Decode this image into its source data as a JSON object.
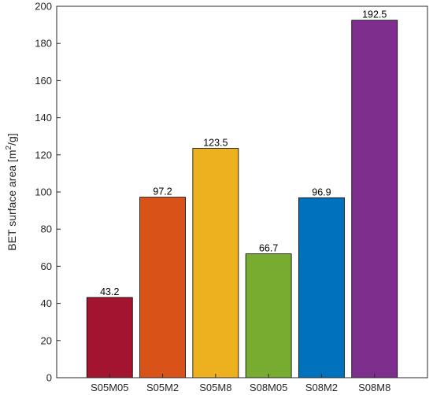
{
  "chart_data": {
    "type": "bar",
    "categories": [
      "S05M05",
      "S05M2",
      "S05M8",
      "S08M05",
      "S08M2",
      "S08M8"
    ],
    "values": [
      43.2,
      97.2,
      123.5,
      66.7,
      96.9,
      192.5
    ],
    "data_labels": [
      "43.2",
      "97.2",
      "123.5",
      "66.7",
      "96.9",
      "192.5"
    ],
    "colors": [
      "#A2142F",
      "#D95319",
      "#EDB120",
      "#77AC30",
      "#0072BD",
      "#7E2F8E"
    ],
    "title": "",
    "xlabel": "",
    "ylabel": {
      "prefix": "BET surface area [m",
      "superscript": "2",
      "suffix": "/g]"
    },
    "ylim": [
      0,
      200
    ],
    "yticks": [
      0,
      20,
      40,
      60,
      80,
      100,
      120,
      140,
      160,
      180,
      200
    ],
    "grid": false,
    "box": true,
    "legend": "none"
  }
}
